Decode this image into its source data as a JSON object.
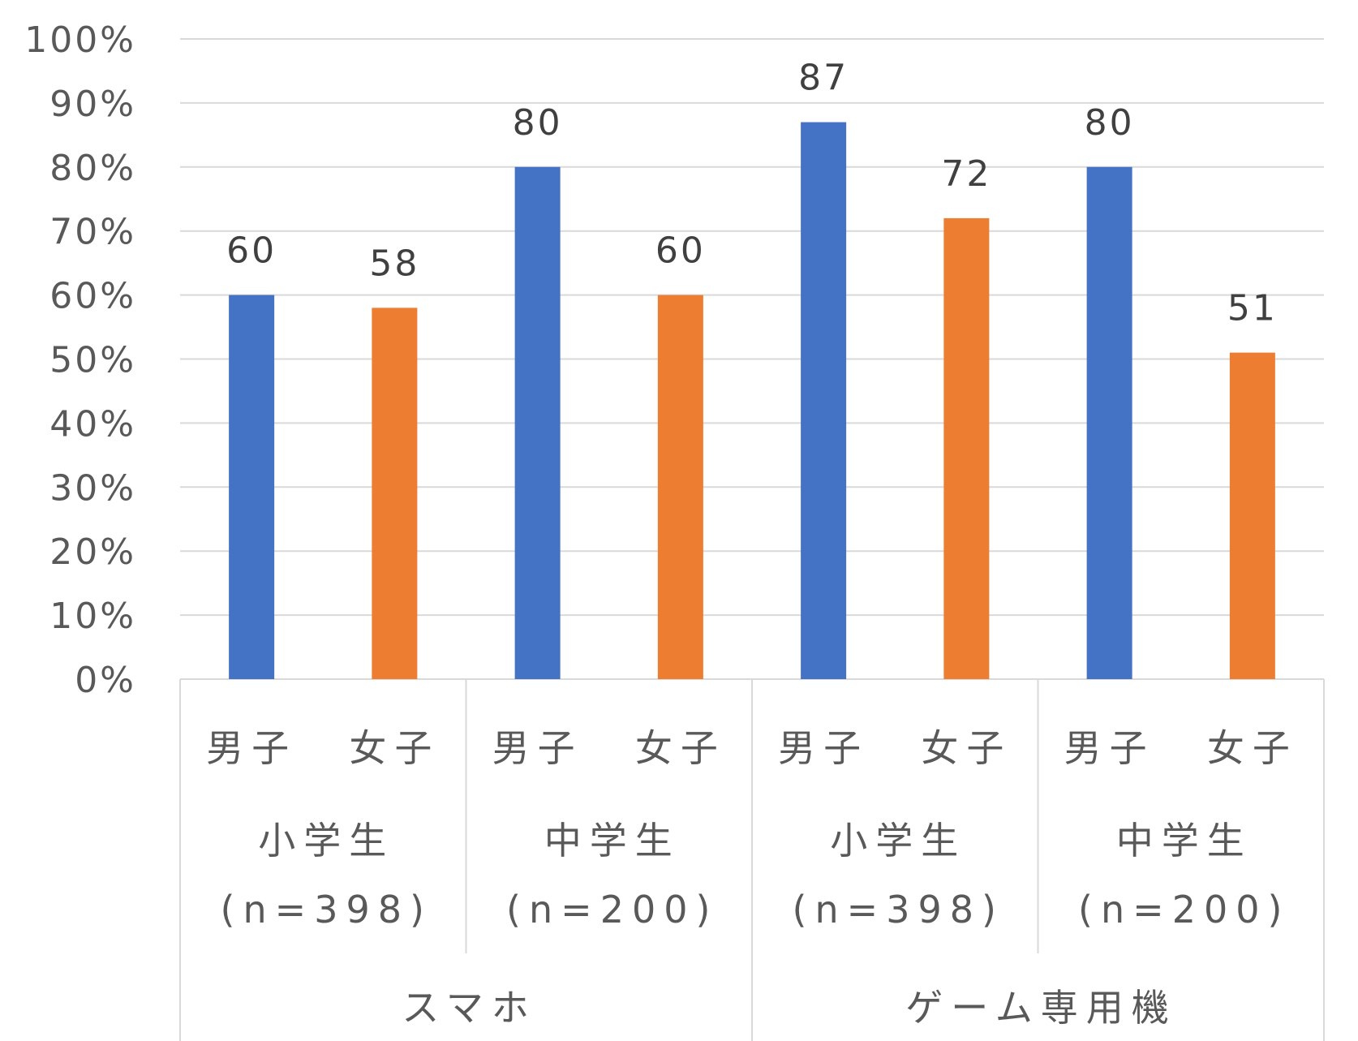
{
  "chart_data": {
    "type": "bar",
    "title": "",
    "xlabel": "",
    "ylabel": "",
    "ylim": [
      0,
      100
    ],
    "yticks": [
      "0%",
      "10%",
      "20%",
      "30%",
      "40%",
      "50%",
      "60%",
      "70%",
      "80%",
      "90%",
      "100%"
    ],
    "categories": [
      {
        "device": "スマホ",
        "school": "小学生",
        "n": "(n=398)",
        "gender": "男子",
        "value": 60,
        "label": "60",
        "series": "male"
      },
      {
        "device": "スマホ",
        "school": "小学生",
        "n": "(n=398)",
        "gender": "女子",
        "value": 58,
        "label": "58",
        "series": "female"
      },
      {
        "device": "スマホ",
        "school": "中学生",
        "n": "(n=200)",
        "gender": "男子",
        "value": 80,
        "label": "80",
        "series": "male"
      },
      {
        "device": "スマホ",
        "school": "中学生",
        "n": "(n=200)",
        "gender": "女子",
        "value": 60,
        "label": "60",
        "series": "female"
      },
      {
        "device": "ゲーム専用機",
        "school": "小学生",
        "n": "(n=398)",
        "gender": "男子",
        "value": 87,
        "label": "87",
        "series": "male"
      },
      {
        "device": "ゲーム専用機",
        "school": "小学生",
        "n": "(n=398)",
        "gender": "女子",
        "value": 72,
        "label": "72",
        "series": "female"
      },
      {
        "device": "ゲーム専用機",
        "school": "中学生",
        "n": "(n=200)",
        "gender": "男子",
        "value": 80,
        "label": "80",
        "series": "male"
      },
      {
        "device": "ゲーム専用機",
        "school": "中学生",
        "n": "(n=200)",
        "gender": "女子",
        "value": 51,
        "label": "51",
        "series": "female"
      }
    ],
    "groups_level2": [
      {
        "school": "小学生",
        "n": "(n=398)"
      },
      {
        "school": "中学生",
        "n": "(n=200)"
      },
      {
        "school": "小学生",
        "n": "(n=398)"
      },
      {
        "school": "中学生",
        "n": "(n=200)"
      }
    ],
    "groups_level3": [
      "スマホ",
      "ゲーム専用機"
    ],
    "colors": {
      "male": "#4472c4",
      "female": "#ed7d31",
      "grid": "#d9d9d9",
      "text": "#595959"
    },
    "grid": true,
    "legend": "none"
  }
}
